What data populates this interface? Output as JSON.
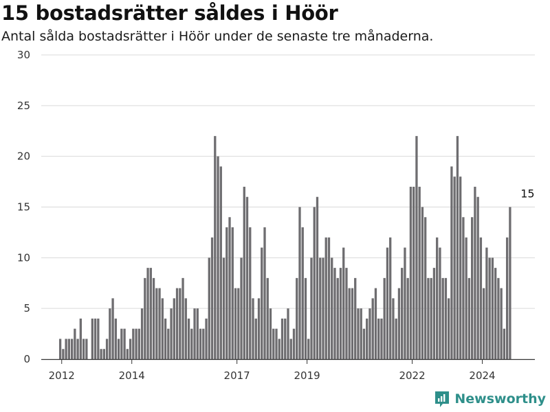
{
  "header": {
    "title": "15 bostadsrätter såldes i Höör",
    "subtitle": "Antal sålda bostadsrätter i Höör under de senaste tre månaderna."
  },
  "brand": {
    "name": "Newsworthy",
    "color": "#2e8f8a",
    "icon": "newsworthy-logo-icon"
  },
  "colors": {
    "bar": "#6e6d70",
    "highlight": "#1a9a92",
    "grid": "#d9d9d9",
    "axis": "#333333"
  },
  "chart_data": {
    "type": "bar",
    "title": "15 bostadsrätter såldes i Höör",
    "xlabel": "",
    "ylabel": "",
    "ylim": [
      0,
      30
    ],
    "yticks": [
      0,
      5,
      10,
      15,
      20,
      25,
      30
    ],
    "xlim": [
      "2011-06",
      "2025-07"
    ],
    "xticks": [
      {
        "label": "2012",
        "x": "2012-01"
      },
      {
        "label": "2014",
        "x": "2014-01"
      },
      {
        "label": "2017",
        "x": "2017-01"
      },
      {
        "label": "2019",
        "x": "2019-01"
      },
      {
        "label": "2022",
        "x": "2022-01"
      },
      {
        "label": "2024",
        "x": "2024-01"
      }
    ],
    "grid": true,
    "bar_months": [
      "2011-12",
      "2025-01"
    ],
    "values": [
      2,
      1,
      2,
      2,
      2,
      3,
      2,
      4,
      2,
      2,
      0,
      4,
      4,
      4,
      1,
      1,
      2,
      5,
      6,
      4,
      2,
      3,
      3,
      1,
      2,
      3,
      3,
      3,
      5,
      8,
      9,
      9,
      8,
      7,
      7,
      6,
      4,
      3,
      5,
      6,
      7,
      7,
      8,
      6,
      4,
      3,
      5,
      5,
      3,
      3,
      4,
      10,
      12,
      22,
      20,
      19,
      10,
      13,
      14,
      13,
      7,
      7,
      10,
      17,
      16,
      13,
      6,
      4,
      6,
      11,
      13,
      8,
      5,
      3,
      3,
      2,
      4,
      4,
      5,
      2,
      3,
      8,
      15,
      13,
      8,
      2,
      10,
      15,
      16,
      10,
      10,
      12,
      12,
      10,
      9,
      8,
      9,
      11,
      9,
      7,
      7,
      8,
      5,
      5,
      3,
      4,
      5,
      6,
      7,
      4,
      4,
      8,
      11,
      12,
      6,
      4,
      7,
      9,
      11,
      8,
      17,
      17,
      22,
      17,
      15,
      14,
      8,
      8,
      9,
      12,
      11,
      8,
      8,
      6,
      19,
      18,
      22,
      18,
      14,
      12,
      8,
      14,
      17,
      16,
      12,
      7,
      11,
      10,
      10,
      9,
      8,
      7,
      3,
      12,
      15
    ],
    "highlight": {
      "index": 160,
      "value": 15,
      "label": "15"
    }
  }
}
